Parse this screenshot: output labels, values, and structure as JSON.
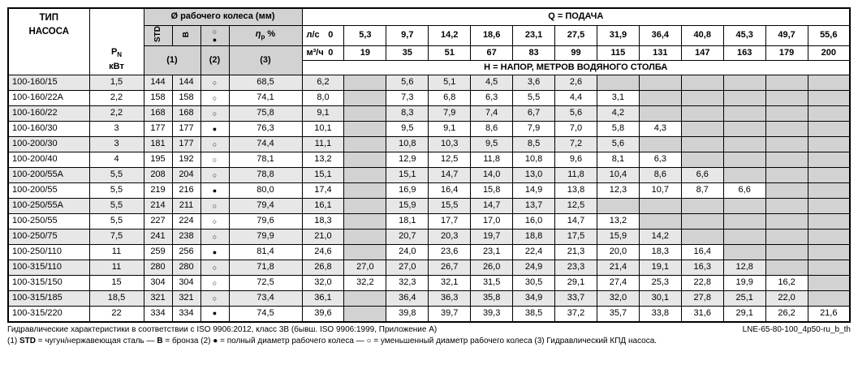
{
  "colors": {
    "header_gray": "#d2d2d2",
    "row_stripe": "#e7e7e7",
    "empty_cell": "#d2d2d2",
    "border": "#000000"
  },
  "header": {
    "pump_type_line1": "ТИП",
    "pump_type_line2": "НАСОСА",
    "power_symbol": "P",
    "power_sub": "N",
    "power_unit": "кВт",
    "impeller_title": "Ø рабочего колеса (мм)",
    "impeller_std": "STD",
    "impeller_b": "B",
    "reduced_diameter_symbol": "○",
    "full_diameter_symbol": "●",
    "eta_symbol": "η",
    "eta_sub": "p",
    "eta_unit": "%",
    "note1": "(1)",
    "note2": "(2)",
    "note3": "(3)",
    "flow_title": "Q = ПОДАЧА",
    "flow_ls_label": "л/с",
    "flow_m3h_label": "м³/ч",
    "head_title": "Н = НАПОР, МЕТРОВ ВОДЯНОГО СТОЛБА",
    "flow_ls": [
      "0",
      "5,3",
      "9,7",
      "14,2",
      "18,6",
      "23,1",
      "27,5",
      "31,9",
      "36,4",
      "40,8",
      "45,3",
      "49,7",
      "55,6"
    ],
    "flow_m3h": [
      "0",
      "19",
      "35",
      "51",
      "67",
      "83",
      "99",
      "115",
      "131",
      "147",
      "163",
      "179",
      "200"
    ]
  },
  "rows": [
    {
      "type": "100-160/15",
      "pn": "1,5",
      "std": "144",
      "b": "144",
      "sym": "○",
      "eta": "68,5",
      "h": [
        "6,2",
        null,
        "5,6",
        "5,1",
        "4,5",
        "3,6",
        "2,6",
        null,
        null,
        null,
        null,
        null,
        null
      ]
    },
    {
      "type": "100-160/22A",
      "pn": "2,2",
      "std": "158",
      "b": "158",
      "sym": "○",
      "eta": "74,1",
      "h": [
        "8,0",
        null,
        "7,3",
        "6,8",
        "6,3",
        "5,5",
        "4,4",
        "3,1",
        null,
        null,
        null,
        null,
        null
      ]
    },
    {
      "type": "100-160/22",
      "pn": "2,2",
      "std": "168",
      "b": "168",
      "sym": "○",
      "eta": "75,8",
      "h": [
        "9,1",
        null,
        "8,3",
        "7,9",
        "7,4",
        "6,7",
        "5,6",
        "4,2",
        null,
        null,
        null,
        null,
        null
      ]
    },
    {
      "type": "100-160/30",
      "pn": "3",
      "std": "177",
      "b": "177",
      "sym": "●",
      "eta": "76,3",
      "h": [
        "10,1",
        null,
        "9,5",
        "9,1",
        "8,6",
        "7,9",
        "7,0",
        "5,8",
        "4,3",
        null,
        null,
        null,
        null
      ]
    },
    {
      "type": "100-200/30",
      "pn": "3",
      "std": "181",
      "b": "177",
      "sym": "○",
      "eta": "74,4",
      "h": [
        "11,1",
        null,
        "10,8",
        "10,3",
        "9,5",
        "8,5",
        "7,2",
        "5,6",
        null,
        null,
        null,
        null,
        null
      ]
    },
    {
      "type": "100-200/40",
      "pn": "4",
      "std": "195",
      "b": "192",
      "sym": "○",
      "eta": "78,1",
      "h": [
        "13,2",
        null,
        "12,9",
        "12,5",
        "11,8",
        "10,8",
        "9,6",
        "8,1",
        "6,3",
        null,
        null,
        null,
        null
      ]
    },
    {
      "type": "100-200/55A",
      "pn": "5,5",
      "std": "208",
      "b": "204",
      "sym": "○",
      "eta": "78,8",
      "h": [
        "15,1",
        null,
        "15,1",
        "14,7",
        "14,0",
        "13,0",
        "11,8",
        "10,4",
        "8,6",
        "6,6",
        null,
        null,
        null
      ]
    },
    {
      "type": "100-200/55",
      "pn": "5,5",
      "std": "219",
      "b": "216",
      "sym": "●",
      "eta": "80,0",
      "h": [
        "17,4",
        null,
        "16,9",
        "16,4",
        "15,8",
        "14,9",
        "13,8",
        "12,3",
        "10,7",
        "8,7",
        "6,6",
        null,
        null
      ]
    },
    {
      "type": "100-250/55A",
      "pn": "5,5",
      "std": "214",
      "b": "211",
      "sym": "○",
      "eta": "79,4",
      "h": [
        "16,1",
        null,
        "15,9",
        "15,5",
        "14,7",
        "13,7",
        "12,5",
        null,
        null,
        null,
        null,
        null,
        null
      ]
    },
    {
      "type": "100-250/55",
      "pn": "5,5",
      "std": "227",
      "b": "224",
      "sym": "○",
      "eta": "79,6",
      "h": [
        "18,3",
        null,
        "18,1",
        "17,7",
        "17,0",
        "16,0",
        "14,7",
        "13,2",
        null,
        null,
        null,
        null,
        null
      ]
    },
    {
      "type": "100-250/75",
      "pn": "7,5",
      "std": "241",
      "b": "238",
      "sym": "○",
      "eta": "79,9",
      "h": [
        "21,0",
        null,
        "20,7",
        "20,3",
        "19,7",
        "18,8",
        "17,5",
        "15,9",
        "14,2",
        null,
        null,
        null,
        null
      ]
    },
    {
      "type": "100-250/110",
      "pn": "11",
      "std": "259",
      "b": "256",
      "sym": "●",
      "eta": "81,4",
      "h": [
        "24,6",
        null,
        "24,0",
        "23,6",
        "23,1",
        "22,4",
        "21,3",
        "20,0",
        "18,3",
        "16,4",
        null,
        null,
        null
      ]
    },
    {
      "type": "100-315/110",
      "pn": "11",
      "std": "280",
      "b": "280",
      "sym": "○",
      "eta": "71,8",
      "h": [
        "26,8",
        "27,0",
        "27,0",
        "26,7",
        "26,0",
        "24,9",
        "23,3",
        "21,4",
        "19,1",
        "16,3",
        "12,8",
        null,
        null
      ]
    },
    {
      "type": "100-315/150",
      "pn": "15",
      "std": "304",
      "b": "304",
      "sym": "○",
      "eta": "72,5",
      "h": [
        "32,0",
        "32,2",
        "32,3",
        "32,1",
        "31,5",
        "30,5",
        "29,1",
        "27,4",
        "25,3",
        "22,8",
        "19,9",
        "16,2",
        null
      ]
    },
    {
      "type": "100-315/185",
      "pn": "18,5",
      "std": "321",
      "b": "321",
      "sym": "○",
      "eta": "73,4",
      "h": [
        "36,1",
        null,
        "36,4",
        "36,3",
        "35,8",
        "34,9",
        "33,7",
        "32,0",
        "30,1",
        "27,8",
        "25,1",
        "22,0",
        null
      ]
    },
    {
      "type": "100-315/220",
      "pn": "22",
      "std": "334",
      "b": "334",
      "sym": "●",
      "eta": "74,5",
      "h": [
        "39,6",
        null,
        "39,8",
        "39,7",
        "39,3",
        "38,5",
        "37,2",
        "35,7",
        "33,8",
        "31,6",
        "29,1",
        "26,2",
        "21,6"
      ]
    }
  ],
  "footer": {
    "iso_note": "Гидравлические характеристики в соответствии с ISO 9906:2012, класс 3B (бывш. ISO 9906:1999, Приложение A)",
    "doc_code": "LNE-65-80-100_4p50-ru_b_th",
    "footnote_parts": [
      {
        "t": "(1) ",
        "b": false
      },
      {
        "t": "STD",
        "b": true
      },
      {
        "t": " = чугун/нержавеющая сталь — ",
        "b": false
      },
      {
        "t": "B",
        "b": true
      },
      {
        "t": " = бронза (2) ● =  полный диаметр рабочего колеса  — ○  =  уменьшенный диаметр рабочего колеса (3) Гидравлический КПД насоса.",
        "b": false
      }
    ]
  }
}
